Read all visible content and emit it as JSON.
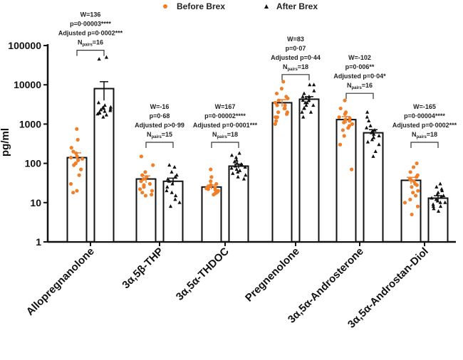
{
  "chart_data": {
    "type": "bar",
    "yscale": "log",
    "ylim": [
      1,
      100000
    ],
    "ylabel": "pg/ml",
    "yticks": [
      "1",
      "10",
      "100",
      "1000",
      "10000",
      "100000"
    ],
    "legend": {
      "placement": "top",
      "entries": [
        "Before Brex",
        "After Brex"
      ]
    },
    "colors": {
      "before": "#f07f2a",
      "after": "#111111"
    },
    "categories": [
      "Allopregnanolone",
      "3α,5β-THP",
      "3α,5α-THDOC",
      "Pregnenolone",
      "3α,5α-Androsterone",
      "3α,5α-Androstan-Diol"
    ],
    "series": [
      {
        "name": "Before Brex",
        "means": [
          140,
          40,
          25,
          3500,
          1300,
          37
        ],
        "sem": [
          45,
          8,
          3,
          700,
          250,
          7
        ],
        "points": [
          [
            750,
            400,
            250,
            200,
            180,
            150,
            140,
            130,
            120,
            100,
            90,
            70,
            50,
            30,
            20,
            18
          ],
          [
            150,
            90,
            60,
            50,
            45,
            40,
            35,
            30,
            28,
            25,
            22,
            20,
            18,
            16,
            15
          ],
          [
            70,
            45,
            35,
            30,
            28,
            27,
            26,
            25,
            24,
            23,
            22,
            21,
            20,
            20,
            19,
            18,
            17,
            16
          ],
          [
            12000,
            8000,
            6000,
            5000,
            4500,
            4000,
            3500,
            3000,
            3000,
            2500,
            2500,
            2000,
            2000,
            1800,
            1500,
            1500,
            1200,
            1000
          ],
          [
            4000,
            2500,
            2000,
            1800,
            1500,
            1400,
            1300,
            1200,
            1100,
            1000,
            900,
            800,
            700,
            500,
            300,
            70
          ],
          [
            100,
            80,
            60,
            50,
            45,
            40,
            38,
            35,
            30,
            28,
            25,
            20,
            18,
            15,
            12,
            10,
            8,
            5
          ]
        ]
      },
      {
        "name": "After Brex",
        "means": [
          8000,
          35,
          85,
          4300,
          600,
          13
        ],
        "sem": [
          4000,
          7,
          10,
          700,
          120,
          2
        ],
        "points": [
          [
            50000,
            45000,
            3000,
            2500,
            2000,
            1800,
            2200,
            2700,
            3500,
            1500,
            2400,
            1900,
            2600,
            2100,
            1700,
            2300
          ],
          [
            90,
            80,
            60,
            50,
            45,
            40,
            35,
            30,
            25,
            20,
            18,
            15,
            12,
            10,
            8
          ],
          [
            180,
            160,
            140,
            120,
            110,
            100,
            95,
            90,
            85,
            80,
            75,
            70,
            65,
            60,
            55,
            50,
            45,
            40
          ],
          [
            10000,
            10000,
            7000,
            6000,
            5000,
            5000,
            4500,
            4000,
            4000,
            3500,
            3500,
            3000,
            3000,
            2500,
            2500,
            2000,
            2000,
            1500
          ],
          [
            2000,
            1500,
            1200,
            900,
            800,
            700,
            650,
            600,
            550,
            500,
            450,
            400,
            350,
            300,
            200,
            150
          ],
          [
            30,
            25,
            22,
            20,
            18,
            16,
            15,
            14,
            13,
            12,
            11,
            10,
            10,
            9,
            8,
            8,
            7,
            6
          ]
        ]
      }
    ],
    "annotations": [
      {
        "W": "W=136",
        "p": "p=0·00003****",
        "adj": "Adjusted p=0·0002***",
        "n": "16"
      },
      {
        "W": "W=-16",
        "p": "p=0·68",
        "adj": "Adjusted p>0·99",
        "n": "15"
      },
      {
        "W": "W=167",
        "p": "p=0·00002****",
        "adj": "Adjusted p=0·0001***",
        "n": "18"
      },
      {
        "W": "W=83",
        "p": "p=0·07",
        "adj": "Adjusted p=0·44",
        "n": "18"
      },
      {
        "W": "W=-102",
        "p": "p=0·006**",
        "adj": "Adjusted p=0·04*",
        "n": "16"
      },
      {
        "W": "W=-165",
        "p": "p=0·00004****",
        "adj": "Adjusted p=0·0002***",
        "n": "18"
      }
    ],
    "npairs_prefix": "N",
    "npairs_sub": "pairs"
  }
}
